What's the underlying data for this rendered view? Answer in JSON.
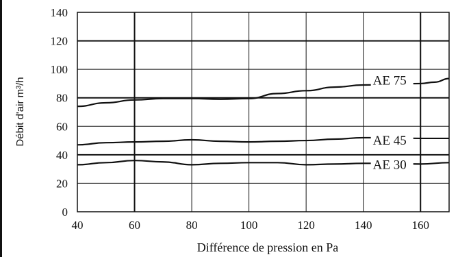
{
  "chart_data": {
    "type": "line",
    "title": "",
    "xlabel": "Différence de pression en Pa",
    "ylabel": "Débit d'air m³/h",
    "xlim": [
      40,
      170
    ],
    "ylim": [
      0,
      140
    ],
    "x_ticks": [
      40,
      60,
      80,
      100,
      120,
      140,
      160
    ],
    "y_ticks": [
      0,
      20,
      40,
      60,
      80,
      100,
      120,
      140
    ],
    "grid": true,
    "legend": "inline labels right",
    "series": [
      {
        "name": "AE 75",
        "x": [
          40,
          50,
          60,
          70,
          80,
          90,
          100,
          110,
          120,
          130,
          140,
          150,
          160,
          165,
          170
        ],
        "y": [
          74,
          76.5,
          78.5,
          79.5,
          79.5,
          79,
          79.5,
          83,
          85,
          87.5,
          89,
          89.5,
          90,
          91,
          93.5
        ]
      },
      {
        "name": "AE 45",
        "x": [
          40,
          50,
          60,
          70,
          80,
          90,
          100,
          110,
          120,
          130,
          140,
          150,
          160,
          170
        ],
        "y": [
          47,
          48.5,
          49,
          49.5,
          50.5,
          49.5,
          49,
          49.5,
          50,
          51,
          52,
          52,
          51.5,
          51.5
        ]
      },
      {
        "name": "AE 30",
        "x": [
          40,
          50,
          60,
          70,
          80,
          90,
          100,
          110,
          120,
          130,
          140,
          150,
          160,
          170
        ],
        "y": [
          33,
          34.5,
          36,
          35,
          33,
          34,
          34.5,
          34.5,
          33,
          33.5,
          34,
          34,
          33.5,
          34.5
        ]
      }
    ]
  },
  "colors": {
    "line": "#111111",
    "grid": "#111111",
    "background": "#ffffff"
  }
}
